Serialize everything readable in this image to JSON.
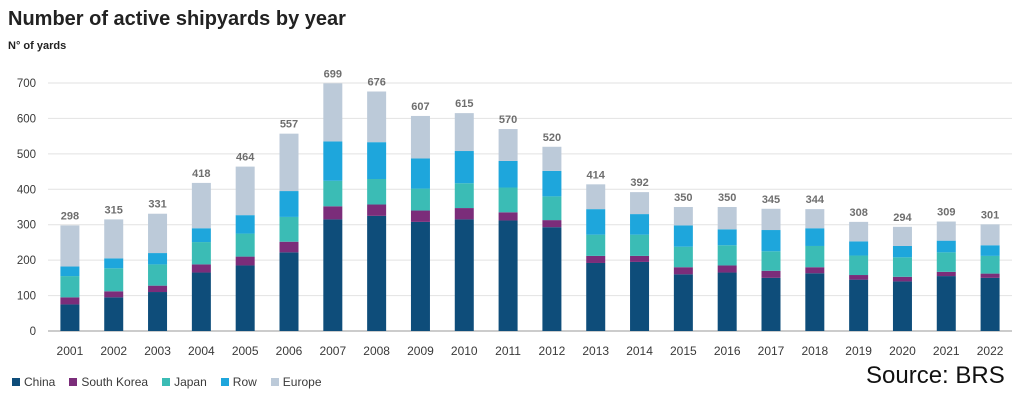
{
  "chart_data": {
    "type": "bar",
    "stacked": true,
    "title": "Number of active shipyards by year",
    "ylabel": "N° of yards",
    "xlabel": "",
    "ylim": [
      0,
      700
    ],
    "yticks": [
      0,
      100,
      200,
      300,
      400,
      500,
      600,
      700
    ],
    "grid": true,
    "legend_position": "bottom-left",
    "categories": [
      "2001",
      "2002",
      "2003",
      "2004",
      "2005",
      "2006",
      "2007",
      "2008",
      "2009",
      "2010",
      "2011",
      "2012",
      "2013",
      "2014",
      "2015",
      "2016",
      "2017",
      "2018",
      "2019",
      "2020",
      "2021",
      "2022"
    ],
    "totals": [
      298,
      315,
      331,
      418,
      464,
      557,
      699,
      676,
      607,
      615,
      570,
      520,
      414,
      392,
      350,
      350,
      345,
      344,
      308,
      294,
      309,
      301
    ],
    "series": [
      {
        "name": "China",
        "color": "#0e4d7a",
        "values": [
          75,
          95,
          110,
          165,
          185,
          222,
          315,
          325,
          308,
          315,
          312,
          293,
          192,
          195,
          160,
          165,
          150,
          163,
          145,
          140,
          155,
          150
        ]
      },
      {
        "name": "South Korea",
        "color": "#7b2d7a",
        "values": [
          20,
          17,
          18,
          23,
          25,
          30,
          37,
          32,
          32,
          32,
          23,
          20,
          20,
          17,
          20,
          20,
          20,
          17,
          13,
          13,
          12,
          12
        ]
      },
      {
        "name": "Japan",
        "color": "#3bbcb5",
        "values": [
          60,
          65,
          60,
          63,
          65,
          70,
          72,
          72,
          62,
          70,
          70,
          67,
          60,
          60,
          58,
          57,
          55,
          60,
          55,
          55,
          55,
          50
        ]
      },
      {
        "name": "Row",
        "color": "#1ea6dc",
        "values": [
          27,
          28,
          32,
          39,
          52,
          73,
          111,
          104,
          85,
          91,
          75,
          72,
          72,
          58,
          60,
          45,
          60,
          50,
          40,
          32,
          33,
          30
        ]
      },
      {
        "name": "Europe",
        "color": "#bccad9",
        "values": [
          116,
          110,
          111,
          128,
          137,
          162,
          164,
          143,
          120,
          107,
          90,
          68,
          70,
          62,
          52,
          63,
          60,
          54,
          55,
          54,
          54,
          59
        ]
      }
    ]
  },
  "source": "Source: BRS"
}
